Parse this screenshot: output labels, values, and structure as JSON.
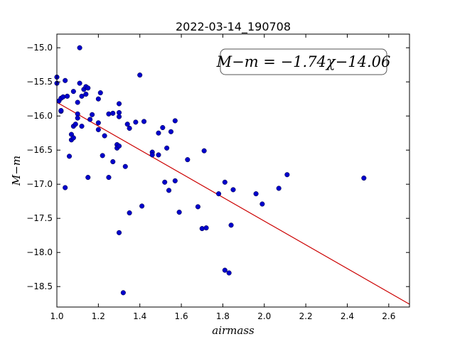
{
  "chart_data": {
    "type": "scatter",
    "title": "2022-03-14_190708",
    "xlabel": "airmass",
    "ylabel": "M−m",
    "xlim": [
      1.0,
      2.7
    ],
    "ylim": [
      -18.8,
      -14.8
    ],
    "x_ticks": [
      1.0,
      1.2,
      1.4,
      1.6,
      1.8,
      2.0,
      2.2,
      2.4,
      2.6
    ],
    "x_tick_labels": [
      "1.0",
      "1.2",
      "1.4",
      "1.6",
      "1.8",
      "2.0",
      "2.2",
      "2.4",
      "2.6"
    ],
    "y_ticks": [
      -15.0,
      -15.5,
      -16.0,
      -16.5,
      -17.0,
      -17.5,
      -18.0,
      -18.5
    ],
    "y_tick_labels": [
      "−15.0",
      "−15.5",
      "−16.0",
      "−16.5",
      "−17.0",
      "−17.5",
      "−18.0",
      "−18.5"
    ],
    "grid": false,
    "annotation": "M−m = −1.74χ−14.06",
    "fit": {
      "slope": -1.74,
      "intercept": -14.06,
      "x_range": [
        1.0,
        2.7
      ],
      "color": "#cc0000"
    },
    "marker_color": "#0000cc",
    "points": [
      [
        1.0,
        -15.43
      ],
      [
        1.0,
        -15.52
      ],
      [
        1.01,
        -15.78
      ],
      [
        1.02,
        -15.74
      ],
      [
        1.02,
        -15.93
      ],
      [
        1.02,
        -15.92
      ],
      [
        1.03,
        -15.72
      ],
      [
        1.04,
        -15.48
      ],
      [
        1.04,
        -17.05
      ],
      [
        1.05,
        -15.71
      ],
      [
        1.06,
        -16.59
      ],
      [
        1.07,
        -16.27
      ],
      [
        1.07,
        -16.35
      ],
      [
        1.08,
        -16.32
      ],
      [
        1.08,
        -15.64
      ],
      [
        1.08,
        -16.15
      ],
      [
        1.09,
        -16.12
      ],
      [
        1.1,
        -15.97
      ],
      [
        1.1,
        -16.03
      ],
      [
        1.1,
        -15.8
      ],
      [
        1.11,
        -15.52
      ],
      [
        1.11,
        -15.0
      ],
      [
        1.12,
        -16.15
      ],
      [
        1.12,
        -15.71
      ],
      [
        1.13,
        -15.61
      ],
      [
        1.14,
        -15.57
      ],
      [
        1.14,
        -15.68
      ],
      [
        1.15,
        -15.59
      ],
      [
        1.15,
        -16.9
      ],
      [
        1.16,
        -16.05
      ],
      [
        1.17,
        -15.98
      ],
      [
        1.2,
        -15.75
      ],
      [
        1.2,
        -16.1
      ],
      [
        1.2,
        -16.2
      ],
      [
        1.21,
        -15.66
      ],
      [
        1.22,
        -16.58
      ],
      [
        1.23,
        -16.29
      ],
      [
        1.25,
        -15.97
      ],
      [
        1.25,
        -16.9
      ],
      [
        1.27,
        -15.96
      ],
      [
        1.27,
        -16.67
      ],
      [
        1.29,
        -16.42
      ],
      [
        1.29,
        -16.47
      ],
      [
        1.3,
        -16.44
      ],
      [
        1.3,
        -15.95
      ],
      [
        1.3,
        -15.82
      ],
      [
        1.3,
        -17.71
      ],
      [
        1.3,
        -16.01
      ],
      [
        1.32,
        -18.59
      ],
      [
        1.33,
        -16.74
      ],
      [
        1.34,
        -16.12
      ],
      [
        1.35,
        -16.18
      ],
      [
        1.35,
        -17.42
      ],
      [
        1.38,
        -16.09
      ],
      [
        1.4,
        -15.4
      ],
      [
        1.41,
        -17.32
      ],
      [
        1.42,
        -16.08
      ],
      [
        1.46,
        -16.53
      ],
      [
        1.46,
        -16.57
      ],
      [
        1.49,
        -16.25
      ],
      [
        1.49,
        -16.57
      ],
      [
        1.51,
        -16.17
      ],
      [
        1.52,
        -16.97
      ],
      [
        1.53,
        -16.47
      ],
      [
        1.54,
        -17.09
      ],
      [
        1.55,
        -16.23
      ],
      [
        1.57,
        -16.07
      ],
      [
        1.57,
        -16.95
      ],
      [
        1.59,
        -17.41
      ],
      [
        1.63,
        -16.64
      ],
      [
        1.68,
        -17.33
      ],
      [
        1.7,
        -17.65
      ],
      [
        1.71,
        -16.51
      ],
      [
        1.72,
        -17.64
      ],
      [
        1.78,
        -17.14
      ],
      [
        1.81,
        -16.97
      ],
      [
        1.81,
        -18.26
      ],
      [
        1.83,
        -18.3
      ],
      [
        1.84,
        -17.6
      ],
      [
        1.85,
        -17.08
      ],
      [
        1.96,
        -17.14
      ],
      [
        1.99,
        -17.29
      ],
      [
        2.07,
        -17.06
      ],
      [
        2.11,
        -16.86
      ],
      [
        2.48,
        -16.91
      ]
    ]
  }
}
